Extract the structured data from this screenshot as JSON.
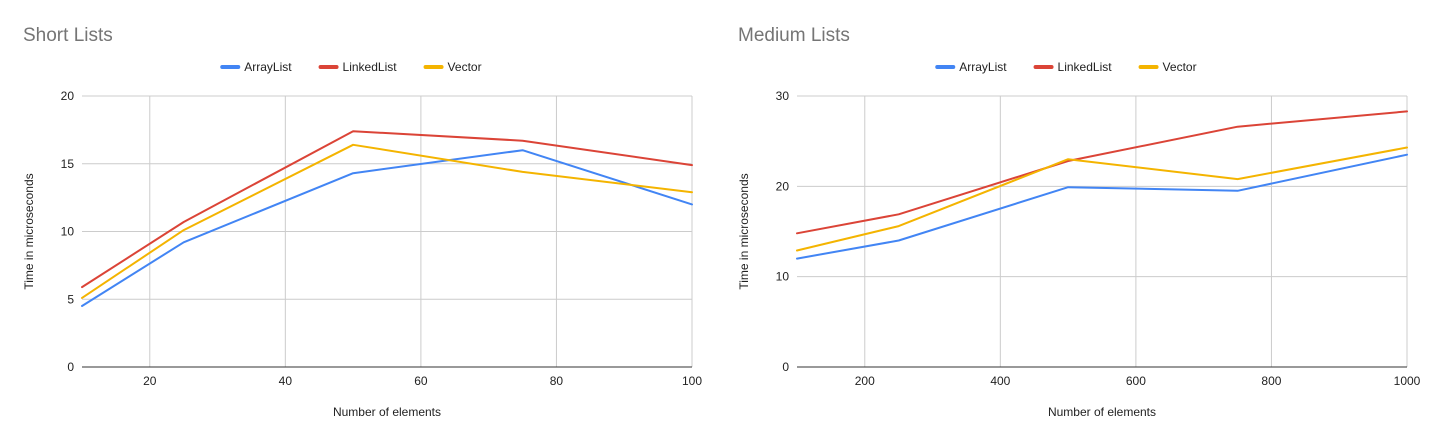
{
  "chart_data": [
    {
      "type": "line",
      "title": "Short Lists",
      "xlabel": "Number of elements",
      "ylabel": "Time in microseconds",
      "xlim": [
        10,
        100
      ],
      "ylim": [
        0,
        20
      ],
      "xticks": [
        20,
        40,
        60,
        80,
        100
      ],
      "yticks": [
        0,
        5,
        10,
        15,
        20
      ],
      "grid": true,
      "legend_position": "top-center",
      "x": [
        10,
        25,
        50,
        75,
        100
      ],
      "series": [
        {
          "name": "ArrayList",
          "color": "#4285f4",
          "values": [
            4.5,
            9.2,
            14.3,
            16.0,
            12.0
          ]
        },
        {
          "name": "LinkedList",
          "color": "#db4437",
          "values": [
            5.9,
            10.7,
            17.4,
            16.7,
            14.9
          ]
        },
        {
          "name": "Vector",
          "color": "#f4b400",
          "values": [
            5.1,
            10.1,
            16.4,
            14.4,
            12.9
          ]
        }
      ]
    },
    {
      "type": "line",
      "title": "Medium Lists",
      "xlabel": "Number of elements",
      "ylabel": "Time in microseconds",
      "xlim": [
        100,
        1000
      ],
      "ylim": [
        0,
        30
      ],
      "xticks": [
        200,
        400,
        600,
        800,
        1000
      ],
      "yticks": [
        0,
        10,
        20,
        30
      ],
      "grid": true,
      "legend_position": "top-center",
      "x": [
        100,
        250,
        500,
        750,
        1000
      ],
      "series": [
        {
          "name": "ArrayList",
          "color": "#4285f4",
          "values": [
            12.0,
            14.0,
            19.9,
            19.5,
            23.5
          ]
        },
        {
          "name": "LinkedList",
          "color": "#db4437",
          "values": [
            14.8,
            16.9,
            22.8,
            26.6,
            28.3
          ]
        },
        {
          "name": "Vector",
          "color": "#f4b400",
          "values": [
            12.9,
            15.6,
            23.0,
            20.8,
            24.3
          ]
        }
      ]
    }
  ]
}
